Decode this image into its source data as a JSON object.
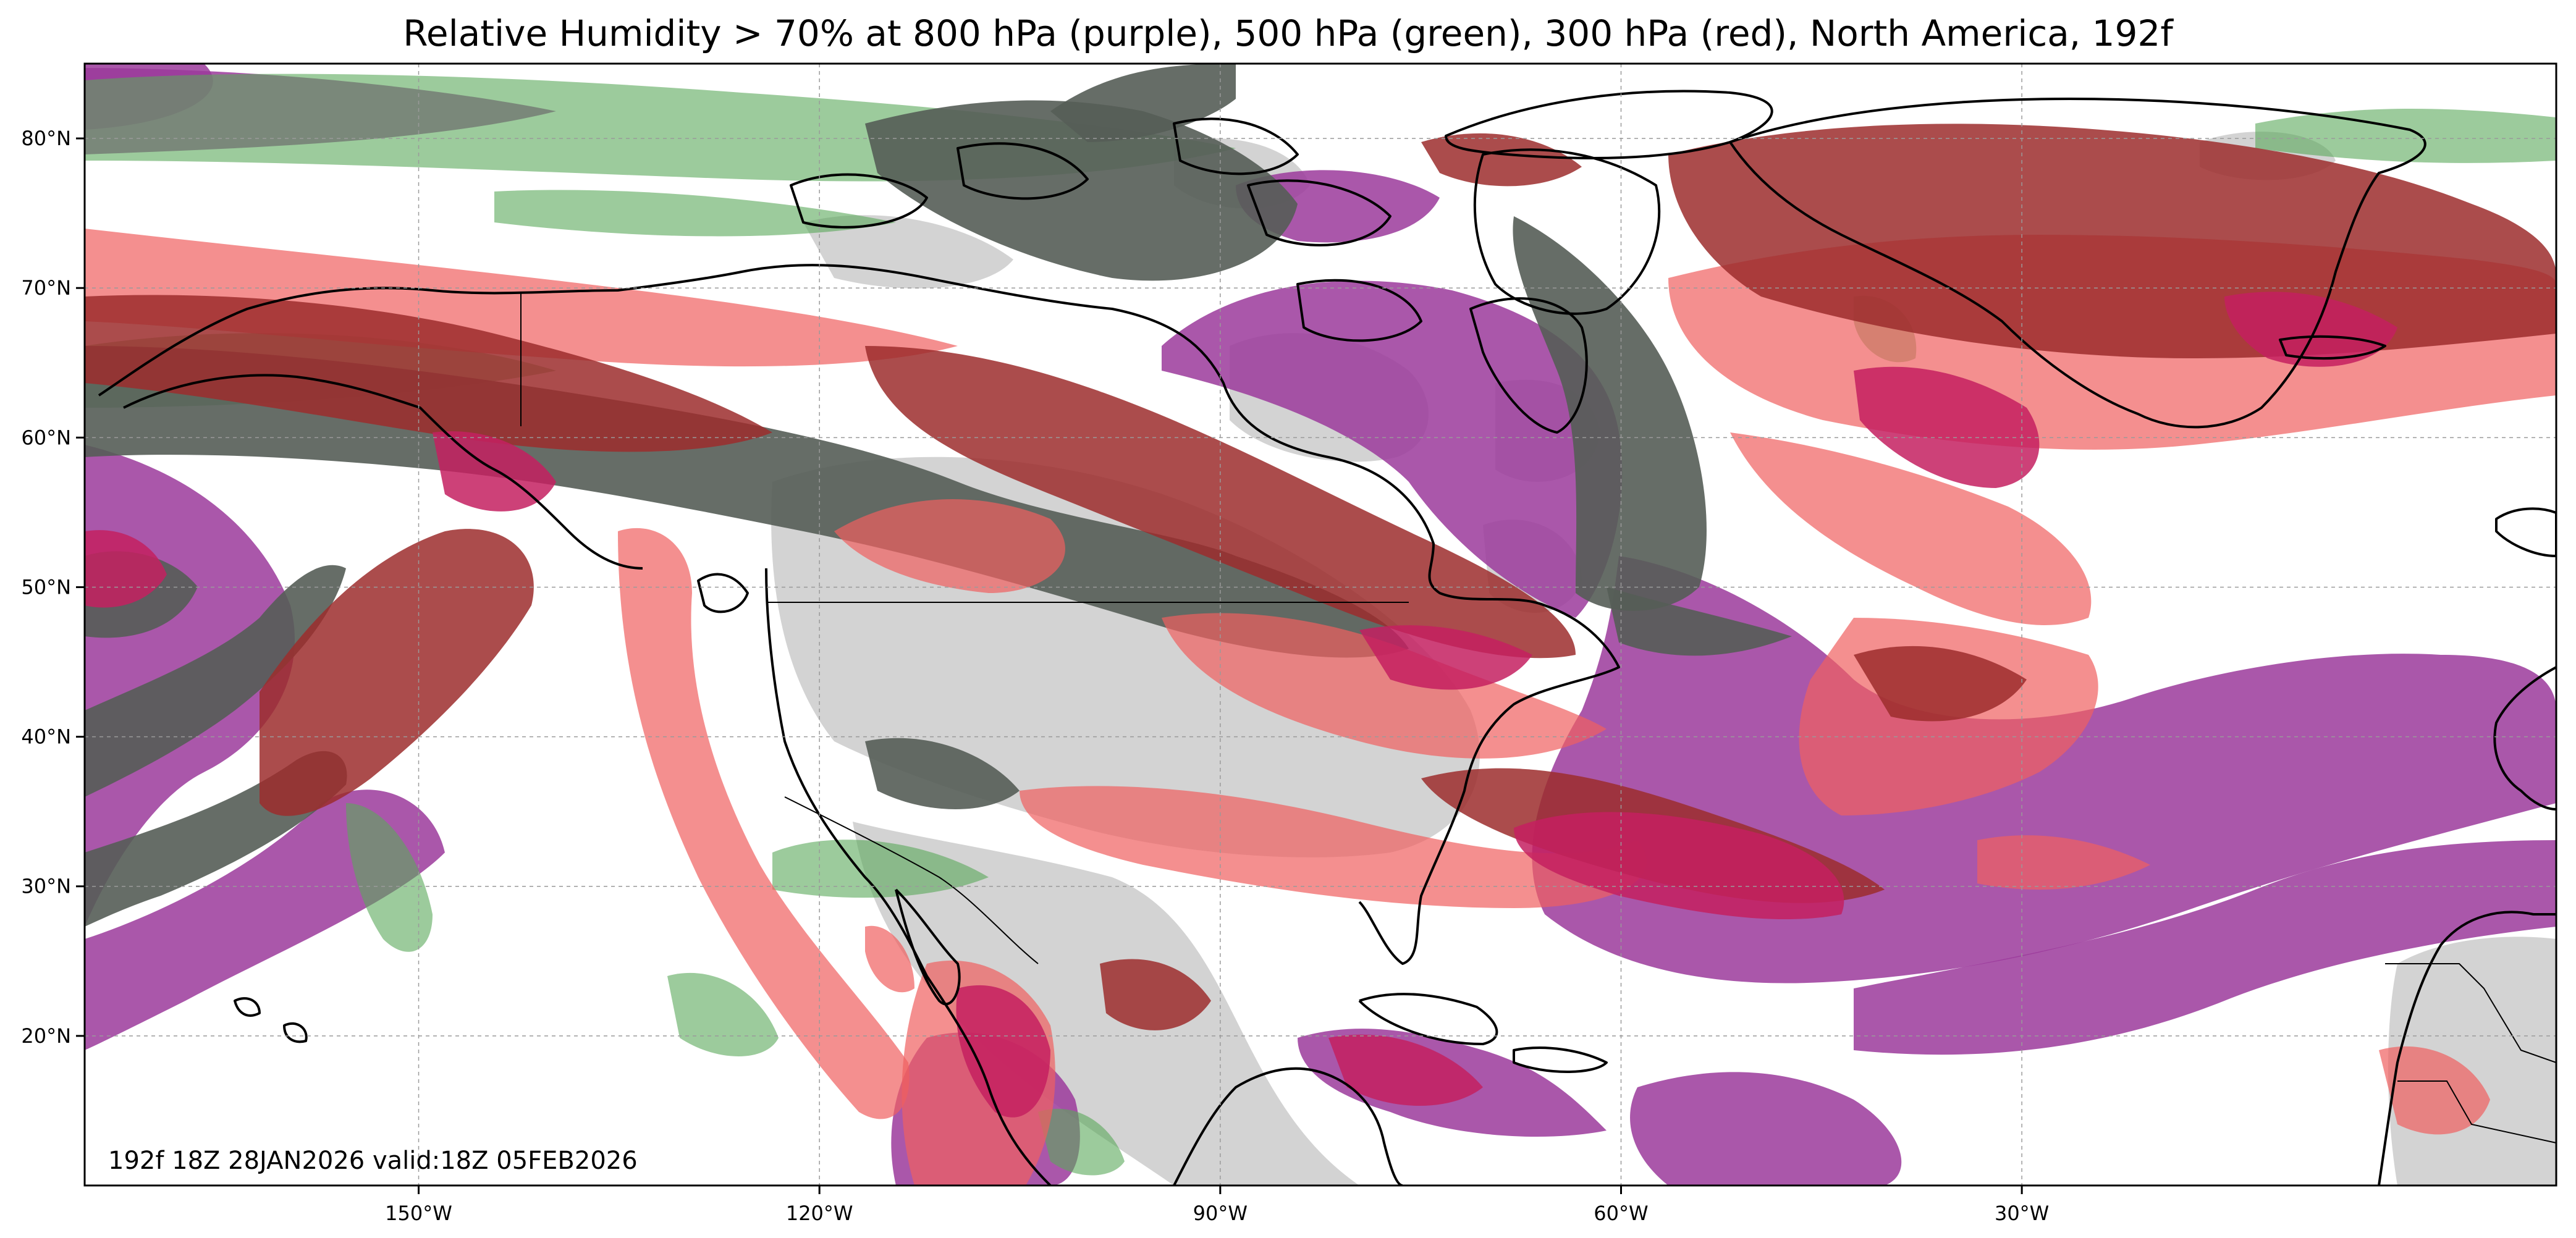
{
  "title": "Relative Humidity > 70% at 800 hPa (purple), 500 hPa (green), 300 hPa (red), North America, 192f",
  "validity_text": "192f 18Z 28JAN2026 valid:18Z 05FEB2026",
  "map": {
    "projection": "equirectangular",
    "lon_range": [
      -175,
      10
    ],
    "lat_range": [
      10,
      85
    ],
    "colors": {
      "rh800_purple": "#9b3a9b",
      "rh500_green": "#5aa85a",
      "rh300_red": "#f06060",
      "overlap_dark": "#555d57",
      "overlap_maroon": "#9c2d2d",
      "overlap_crimson": "#c42060",
      "land_gray": "#d3d3d3",
      "coastline": "#000000"
    },
    "lat_ticks": [
      {
        "value": 20,
        "label": "20°N"
      },
      {
        "value": 30,
        "label": "30°N"
      },
      {
        "value": 40,
        "label": "40°N"
      },
      {
        "value": 50,
        "label": "50°N"
      },
      {
        "value": 60,
        "label": "60°N"
      },
      {
        "value": 70,
        "label": "70°N"
      },
      {
        "value": 80,
        "label": "80°N"
      }
    ],
    "lon_ticks": [
      {
        "value": -150,
        "label": "150°W"
      },
      {
        "value": -120,
        "label": "120°W"
      },
      {
        "value": -90,
        "label": "90°W"
      },
      {
        "value": -60,
        "label": "60°W"
      },
      {
        "value": -30,
        "label": "30°W"
      }
    ],
    "gridlines": true
  }
}
